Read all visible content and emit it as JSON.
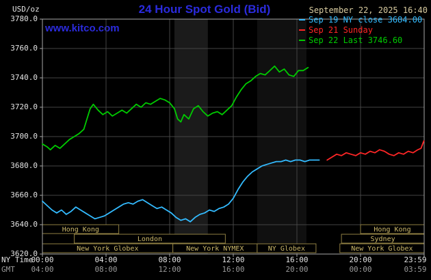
{
  "header": {
    "datetime": "September 22, 2025 16:40",
    "watermark": "www.kitco.com"
  },
  "colors": {
    "background": "#000000",
    "title_blue": "#2b2bdd",
    "watermark_blue": "#2b2bdd",
    "date_tan": "#d8cba0",
    "axis_text": "#e4e4e4",
    "gmt_text": "#9a9a9a",
    "grid": "#454545",
    "frame": "#a8a8a8",
    "session_border": "#8f7f42",
    "session_text": "#cdb96a"
  },
  "chart_data": {
    "type": "line",
    "title": "24 Hour Spot Gold (Bid)",
    "y_unit": "USD/oz",
    "ylim": [
      3620,
      3780
    ],
    "xlim_hours": [
      0,
      24
    ],
    "y_tick_labels": [
      "3780.0",
      "3760.0",
      "3740.0",
      "3720.0",
      "3700.0",
      "3680.0",
      "3660.0",
      "3640.0",
      "3620.0"
    ],
    "y_tick_values": [
      3780,
      3760,
      3740,
      3720,
      3700,
      3680,
      3660,
      3640,
      3620
    ],
    "grid": {
      "y_values": [
        3760,
        3740,
        3720,
        3700,
        3680,
        3660,
        3640
      ],
      "x_hours": [
        4,
        8,
        12,
        16,
        20
      ]
    },
    "x_axis_rows": [
      {
        "name": "NY Time",
        "color": "#e4e4e4",
        "tick_hours": [
          0,
          4,
          8,
          12,
          16,
          20,
          24
        ],
        "labels": [
          "00:00",
          "04:00",
          "08:00",
          "12:00",
          "16:00",
          "20:00",
          "23:59"
        ]
      },
      {
        "name": "GMT",
        "color": "#9a9a9a",
        "tick_hours": [
          0,
          4,
          8,
          12,
          16,
          20,
          24
        ],
        "labels": [
          "04:00",
          "08:00",
          "12:00",
          "16:00",
          "20:00",
          "00:00",
          "03:59"
        ]
      }
    ],
    "legend_entries": [
      {
        "label": "Sep 19 NY close 3684.00",
        "color": "#33bbff"
      },
      {
        "label": "Sep 21 Sunday",
        "color": "#ff2626"
      },
      {
        "label": "Sep 22 Last 3746.60",
        "color": "#00cc00"
      }
    ],
    "bands": [
      {
        "start": 8.3,
        "end": 10.4,
        "color": "#1b1b1b"
      },
      {
        "start": 13.5,
        "end": 16.6,
        "color": "#101010"
      }
    ],
    "sessions": [
      {
        "row": 0,
        "label": "Hong Kong",
        "start": 0,
        "end": 4.8
      },
      {
        "row": 0,
        "label": "Hong Kong",
        "start": 20.0,
        "end": 24
      },
      {
        "row": 1,
        "label": "London",
        "start": 2.0,
        "end": 11.5
      },
      {
        "row": 1,
        "label": "Sydney",
        "start": 18.8,
        "end": 24
      },
      {
        "row": 2,
        "label": "New York Globex",
        "start": 0,
        "end": 8.2
      },
      {
        "row": 2,
        "label": "New York NYMEX",
        "start": 8.2,
        "end": 13.5
      },
      {
        "row": 2,
        "label": "NY Globex",
        "start": 13.5,
        "end": 17.2
      },
      {
        "row": 2,
        "label": "New York Globex",
        "start": 18.7,
        "end": 24
      }
    ],
    "series": [
      {
        "id": "sep19",
        "name": "Sep 19 NY close",
        "color": "#33bbff",
        "close": 3684.0,
        "points": [
          [
            0,
            3656
          ],
          [
            0.3,
            3653
          ],
          [
            0.6,
            3650
          ],
          [
            0.9,
            3648
          ],
          [
            1.2,
            3650
          ],
          [
            1.5,
            3647
          ],
          [
            1.8,
            3649
          ],
          [
            2.1,
            3652
          ],
          [
            2.4,
            3650
          ],
          [
            2.7,
            3648
          ],
          [
            3.0,
            3646
          ],
          [
            3.3,
            3644
          ],
          [
            3.6,
            3645
          ],
          [
            3.9,
            3646
          ],
          [
            4.2,
            3648
          ],
          [
            4.5,
            3650
          ],
          [
            4.8,
            3652
          ],
          [
            5.1,
            3654
          ],
          [
            5.4,
            3655
          ],
          [
            5.7,
            3654
          ],
          [
            6.0,
            3656
          ],
          [
            6.3,
            3657
          ],
          [
            6.6,
            3655
          ],
          [
            6.9,
            3653
          ],
          [
            7.2,
            3651
          ],
          [
            7.5,
            3652
          ],
          [
            7.8,
            3650
          ],
          [
            8.1,
            3648
          ],
          [
            8.4,
            3645
          ],
          [
            8.7,
            3643
          ],
          [
            9.0,
            3644
          ],
          [
            9.3,
            3642
          ],
          [
            9.6,
            3645
          ],
          [
            9.9,
            3647
          ],
          [
            10.2,
            3648
          ],
          [
            10.5,
            3650
          ],
          [
            10.8,
            3649
          ],
          [
            11.1,
            3651
          ],
          [
            11.4,
            3652
          ],
          [
            11.7,
            3654
          ],
          [
            12.0,
            3658
          ],
          [
            12.3,
            3664
          ],
          [
            12.6,
            3669
          ],
          [
            12.9,
            3673
          ],
          [
            13.2,
            3676
          ],
          [
            13.5,
            3678
          ],
          [
            13.8,
            3680
          ],
          [
            14.1,
            3681
          ],
          [
            14.4,
            3682
          ],
          [
            14.7,
            3683
          ],
          [
            15.0,
            3683
          ],
          [
            15.3,
            3684
          ],
          [
            15.6,
            3683
          ],
          [
            15.9,
            3684
          ],
          [
            16.2,
            3684
          ],
          [
            16.5,
            3683
          ],
          [
            16.8,
            3684
          ],
          [
            17.1,
            3684
          ],
          [
            17.4,
            3684
          ]
        ]
      },
      {
        "id": "sep21",
        "name": "Sep 21 Sunday",
        "color": "#ff2626",
        "points": [
          [
            17.9,
            3684
          ],
          [
            18.2,
            3686
          ],
          [
            18.5,
            3688
          ],
          [
            18.8,
            3687
          ],
          [
            19.1,
            3689
          ],
          [
            19.4,
            3688
          ],
          [
            19.7,
            3687
          ],
          [
            20.0,
            3689
          ],
          [
            20.3,
            3688
          ],
          [
            20.6,
            3690
          ],
          [
            20.9,
            3689
          ],
          [
            21.2,
            3691
          ],
          [
            21.5,
            3690
          ],
          [
            21.8,
            3688
          ],
          [
            22.1,
            3687
          ],
          [
            22.4,
            3689
          ],
          [
            22.7,
            3688
          ],
          [
            23.0,
            3690
          ],
          [
            23.3,
            3689
          ],
          [
            23.6,
            3691
          ],
          [
            23.8,
            3692
          ],
          [
            23.98,
            3697
          ]
        ]
      },
      {
        "id": "sep22",
        "name": "Sep 22 Last",
        "color": "#00cc00",
        "last": 3746.6,
        "points": [
          [
            0,
            3695
          ],
          [
            0.3,
            3693
          ],
          [
            0.5,
            3691
          ],
          [
            0.8,
            3694
          ],
          [
            1.1,
            3692
          ],
          [
            1.4,
            3695
          ],
          [
            1.7,
            3698
          ],
          [
            2.0,
            3700
          ],
          [
            2.3,
            3702
          ],
          [
            2.6,
            3705
          ],
          [
            2.8,
            3712
          ],
          [
            3.0,
            3719
          ],
          [
            3.2,
            3722
          ],
          [
            3.5,
            3718
          ],
          [
            3.8,
            3715
          ],
          [
            4.1,
            3717
          ],
          [
            4.4,
            3714
          ],
          [
            4.7,
            3716
          ],
          [
            5.0,
            3718
          ],
          [
            5.3,
            3716
          ],
          [
            5.6,
            3719
          ],
          [
            5.9,
            3722
          ],
          [
            6.2,
            3720
          ],
          [
            6.5,
            3723
          ],
          [
            6.8,
            3722
          ],
          [
            7.1,
            3724
          ],
          [
            7.4,
            3726
          ],
          [
            7.7,
            3725
          ],
          [
            8.0,
            3723
          ],
          [
            8.3,
            3719
          ],
          [
            8.5,
            3712
          ],
          [
            8.7,
            3710
          ],
          [
            8.9,
            3715
          ],
          [
            9.2,
            3712
          ],
          [
            9.5,
            3719
          ],
          [
            9.8,
            3721
          ],
          [
            10.1,
            3717
          ],
          [
            10.4,
            3714
          ],
          [
            10.7,
            3716
          ],
          [
            11.0,
            3717
          ],
          [
            11.3,
            3715
          ],
          [
            11.6,
            3718
          ],
          [
            11.9,
            3721
          ],
          [
            12.2,
            3727
          ],
          [
            12.5,
            3732
          ],
          [
            12.8,
            3736
          ],
          [
            13.1,
            3738
          ],
          [
            13.4,
            3741
          ],
          [
            13.7,
            3743
          ],
          [
            14.0,
            3742
          ],
          [
            14.3,
            3745
          ],
          [
            14.6,
            3748
          ],
          [
            14.9,
            3744
          ],
          [
            15.2,
            3746
          ],
          [
            15.5,
            3742
          ],
          [
            15.8,
            3741
          ],
          [
            16.1,
            3745
          ],
          [
            16.4,
            3745
          ],
          [
            16.7,
            3747
          ]
        ]
      }
    ]
  }
}
